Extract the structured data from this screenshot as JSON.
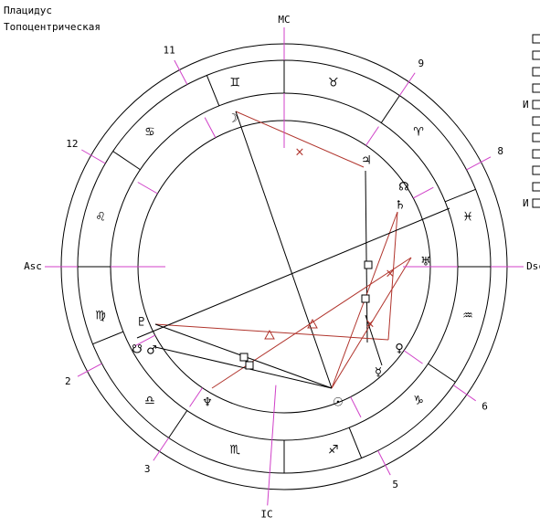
{
  "header": {
    "system": "Плацидус",
    "mode": "Топоцентрическая"
  },
  "angles": {
    "mc": "MC",
    "asc": "Asc",
    "dsc": "Dsc",
    "ic": "IC"
  },
  "houses": [
    "2",
    "3",
    "5",
    "6",
    "8",
    "9",
    "11",
    "12"
  ],
  "signs": [
    "♌",
    "♋",
    "♊",
    "♉",
    "♈",
    "♓",
    "♒",
    "♑",
    "♐",
    "♏",
    "♎",
    "♍"
  ],
  "planets": [
    "☽",
    "♃",
    "☊",
    "♄",
    "♅",
    "♀",
    "☿",
    "☉",
    "♆",
    "♇",
    "☋",
    "♂"
  ],
  "legend": [
    "И",
    "И"
  ]
}
